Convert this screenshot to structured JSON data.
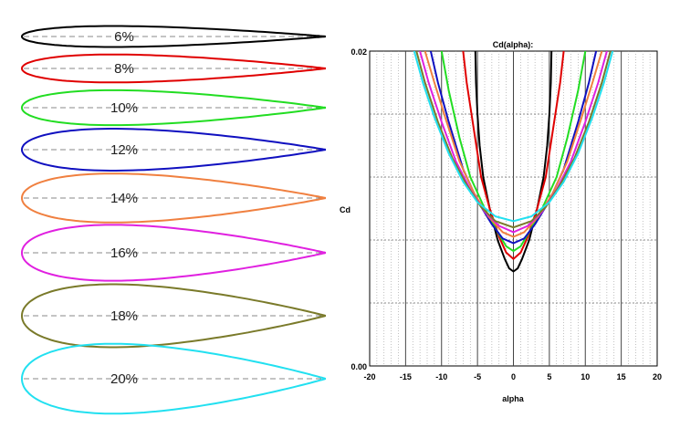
{
  "airfoils": [
    {
      "label": "6%",
      "thickness": 0.06,
      "color": "#000000"
    },
    {
      "label": "8%",
      "thickness": 0.08,
      "color": "#e00000"
    },
    {
      "label": "10%",
      "thickness": 0.1,
      "color": "#22dd22"
    },
    {
      "label": "12%",
      "thickness": 0.12,
      "color": "#1010c0"
    },
    {
      "label": "14%",
      "thickness": 0.14,
      "color": "#f08040"
    },
    {
      "label": "16%",
      "thickness": 0.16,
      "color": "#e020e0"
    },
    {
      "label": "18%",
      "thickness": 0.18,
      "color": "#7a7a2a"
    },
    {
      "label": "20%",
      "thickness": 0.2,
      "color": "#22e0f0"
    }
  ],
  "chart_data": {
    "type": "line",
    "title": "Cd(alpha):",
    "xlabel": "alpha",
    "ylabel": "Cd",
    "xlim": [
      -20,
      20
    ],
    "ylim": [
      0.0,
      0.02
    ],
    "x_ticks": [
      -20,
      -15,
      -10,
      -5,
      0,
      5,
      10,
      15,
      20
    ],
    "x_tick_labels": [
      "-20",
      "-15",
      "-10",
      "-5",
      "0",
      "5",
      "10",
      "15",
      "20"
    ],
    "y_tick_labels": [
      "0.00",
      "0.02"
    ],
    "grid": true,
    "series": [
      {
        "color": "#000000",
        "points": [
          [
            -5.3,
            0.02
          ],
          [
            -5.2,
            0.018
          ],
          [
            -5.0,
            0.016
          ],
          [
            -4.7,
            0.014
          ],
          [
            -4.2,
            0.012
          ],
          [
            -3.3,
            0.01
          ],
          [
            -2.2,
            0.008
          ],
          [
            -1.2,
            0.0068
          ],
          [
            -0.6,
            0.0062
          ],
          [
            0,
            0.006
          ],
          [
            0.6,
            0.0062
          ],
          [
            1.2,
            0.0068
          ],
          [
            2.2,
            0.008
          ],
          [
            3.3,
            0.01
          ],
          [
            4.2,
            0.012
          ],
          [
            4.7,
            0.014
          ],
          [
            5.0,
            0.016
          ],
          [
            5.2,
            0.018
          ],
          [
            5.3,
            0.02
          ]
        ]
      },
      {
        "color": "#e00000",
        "points": [
          [
            -7.0,
            0.02
          ],
          [
            -6.5,
            0.018
          ],
          [
            -5.5,
            0.015
          ],
          [
            -4.5,
            0.012
          ],
          [
            -3.3,
            0.01
          ],
          [
            -2.0,
            0.0082
          ],
          [
            -1.0,
            0.0072
          ],
          [
            0,
            0.0068
          ],
          [
            1.0,
            0.0072
          ],
          [
            2.0,
            0.0082
          ],
          [
            3.3,
            0.01
          ],
          [
            4.5,
            0.012
          ],
          [
            5.5,
            0.015
          ],
          [
            6.5,
            0.018
          ],
          [
            7.0,
            0.02
          ]
        ]
      },
      {
        "color": "#22dd22",
        "points": [
          [
            -10.0,
            0.02
          ],
          [
            -9.0,
            0.0175
          ],
          [
            -7.5,
            0.0145
          ],
          [
            -6.0,
            0.012
          ],
          [
            -4.0,
            0.01
          ],
          [
            -2.2,
            0.0085
          ],
          [
            -1.0,
            0.0076
          ],
          [
            0,
            0.0073
          ],
          [
            1.0,
            0.0076
          ],
          [
            2.2,
            0.0085
          ],
          [
            4.0,
            0.01
          ],
          [
            6.0,
            0.012
          ],
          [
            7.5,
            0.0145
          ],
          [
            9.0,
            0.0175
          ],
          [
            10.0,
            0.02
          ]
        ]
      },
      {
        "color": "#1010c0",
        "points": [
          [
            -11.5,
            0.02
          ],
          [
            -10.5,
            0.018
          ],
          [
            -9.0,
            0.0155
          ],
          [
            -7.0,
            0.0125
          ],
          [
            -5.0,
            0.0105
          ],
          [
            -3.0,
            0.009
          ],
          [
            -1.5,
            0.0081
          ],
          [
            0,
            0.0078
          ],
          [
            1.5,
            0.0081
          ],
          [
            3.0,
            0.009
          ],
          [
            5.0,
            0.0105
          ],
          [
            7.0,
            0.0125
          ],
          [
            9.0,
            0.0155
          ],
          [
            10.5,
            0.018
          ],
          [
            11.5,
            0.02
          ]
        ]
      },
      {
        "color": "#f08040",
        "points": [
          [
            -12.3,
            0.02
          ],
          [
            -11.0,
            0.018
          ],
          [
            -9.5,
            0.0158
          ],
          [
            -7.5,
            0.013
          ],
          [
            -5.5,
            0.011
          ],
          [
            -3.5,
            0.0095
          ],
          [
            -1.5,
            0.0085
          ],
          [
            0,
            0.0082
          ],
          [
            1.5,
            0.0085
          ],
          [
            3.5,
            0.0095
          ],
          [
            5.5,
            0.011
          ],
          [
            7.5,
            0.013
          ],
          [
            9.5,
            0.0158
          ],
          [
            11.0,
            0.018
          ],
          [
            12.3,
            0.02
          ]
        ]
      },
      {
        "color": "#e020e0",
        "points": [
          [
            -13.0,
            0.02
          ],
          [
            -11.8,
            0.018
          ],
          [
            -10.0,
            0.0155
          ],
          [
            -8.0,
            0.013
          ],
          [
            -6.0,
            0.0112
          ],
          [
            -4.0,
            0.0098
          ],
          [
            -2.0,
            0.0089
          ],
          [
            0,
            0.0085
          ],
          [
            2.0,
            0.0089
          ],
          [
            4.0,
            0.0098
          ],
          [
            6.0,
            0.0112
          ],
          [
            8.0,
            0.013
          ],
          [
            10.0,
            0.0155
          ],
          [
            11.8,
            0.018
          ],
          [
            13.0,
            0.02
          ]
        ]
      },
      {
        "color": "#7a7a2a",
        "points": [
          [
            -13.5,
            0.02
          ],
          [
            -12.3,
            0.018
          ],
          [
            -10.5,
            0.0155
          ],
          [
            -8.5,
            0.0132
          ],
          [
            -6.5,
            0.0115
          ],
          [
            -4.5,
            0.0101
          ],
          [
            -2.5,
            0.0092
          ],
          [
            0,
            0.0088
          ],
          [
            2.5,
            0.0092
          ],
          [
            4.5,
            0.0101
          ],
          [
            6.5,
            0.0115
          ],
          [
            8.5,
            0.0132
          ],
          [
            10.5,
            0.0155
          ],
          [
            12.3,
            0.018
          ],
          [
            13.5,
            0.02
          ]
        ]
      },
      {
        "color": "#22e0f0",
        "points": [
          [
            -13.8,
            0.02
          ],
          [
            -12.6,
            0.018
          ],
          [
            -11.0,
            0.0158
          ],
          [
            -9.0,
            0.0135
          ],
          [
            -7.0,
            0.0117
          ],
          [
            -5.0,
            0.0104
          ],
          [
            -2.5,
            0.0095
          ],
          [
            0,
            0.0092
          ],
          [
            2.5,
            0.0095
          ],
          [
            5.0,
            0.0104
          ],
          [
            7.0,
            0.0117
          ],
          [
            9.0,
            0.0135
          ],
          [
            11.0,
            0.0158
          ],
          [
            12.6,
            0.018
          ],
          [
            13.8,
            0.02
          ]
        ]
      }
    ]
  }
}
